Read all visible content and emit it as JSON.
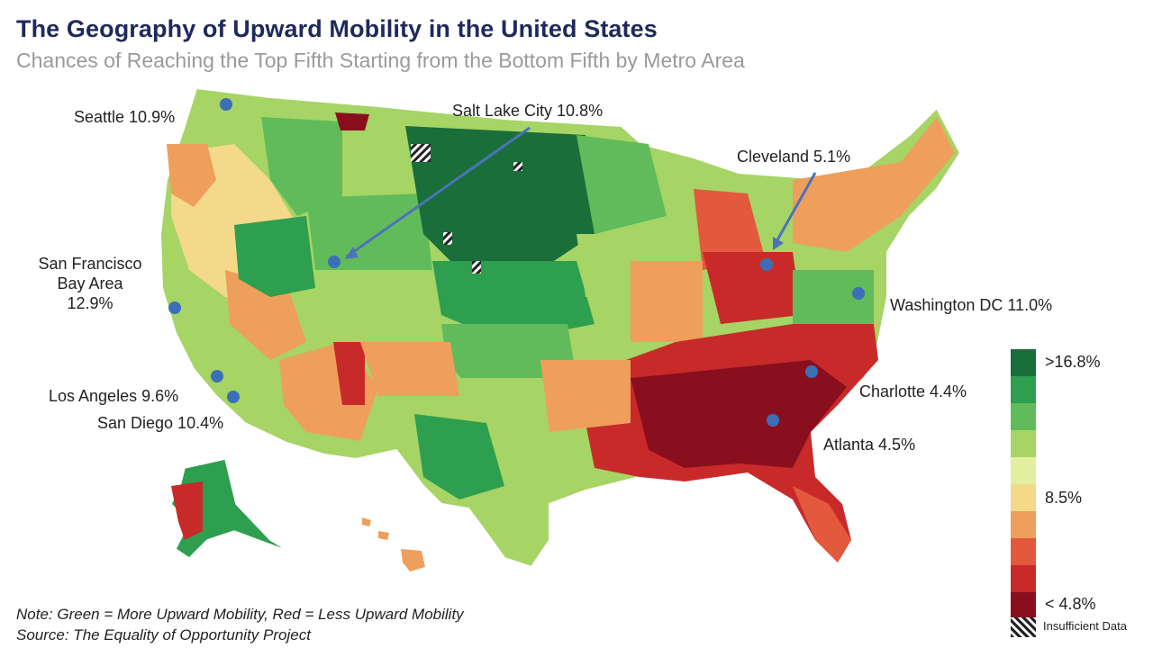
{
  "title": "The Geography of Upward Mobility in the United States",
  "subtitle": "Chances of Reaching the Top Fifth Starting from the Bottom Fifth by Metro Area",
  "cities": {
    "seattle": "Seattle 10.9%",
    "salt_lake": "Salt Lake City 10.8%",
    "cleveland": "Cleveland 5.1%",
    "sf_line1": "San Francisco",
    "sf_line2": "Bay Area",
    "sf_line3": "12.9%",
    "washington": "Washington DC 11.0%",
    "los_angeles": "Los Angeles 9.6%",
    "san_diego": "San Diego 10.4%",
    "charlotte": "Charlotte 4.4%",
    "atlanta": "Atlanta 4.5%"
  },
  "legend": {
    "colors": [
      "#1a6e3a",
      "#2e9e4f",
      "#62bb5a",
      "#a6d465",
      "#e3efa0",
      "#f4d98a",
      "#ee9f5c",
      "#e2593d",
      "#c82a2a",
      "#8a0f1e"
    ],
    "label_top": ">16.8%",
    "label_mid": "8.5%",
    "label_bottom": "< 4.8%",
    "insufficient": "Insufficient Data"
  },
  "notes": {
    "line1": "Note: Green = More Upward Mobility, Red = Less Upward Mobility",
    "line2": "Source: The Equality of Opportunity Project"
  },
  "colors": {
    "marker": "#3b6fb6",
    "arrow": "#4a74b8",
    "title": "#1f2a5a"
  }
}
